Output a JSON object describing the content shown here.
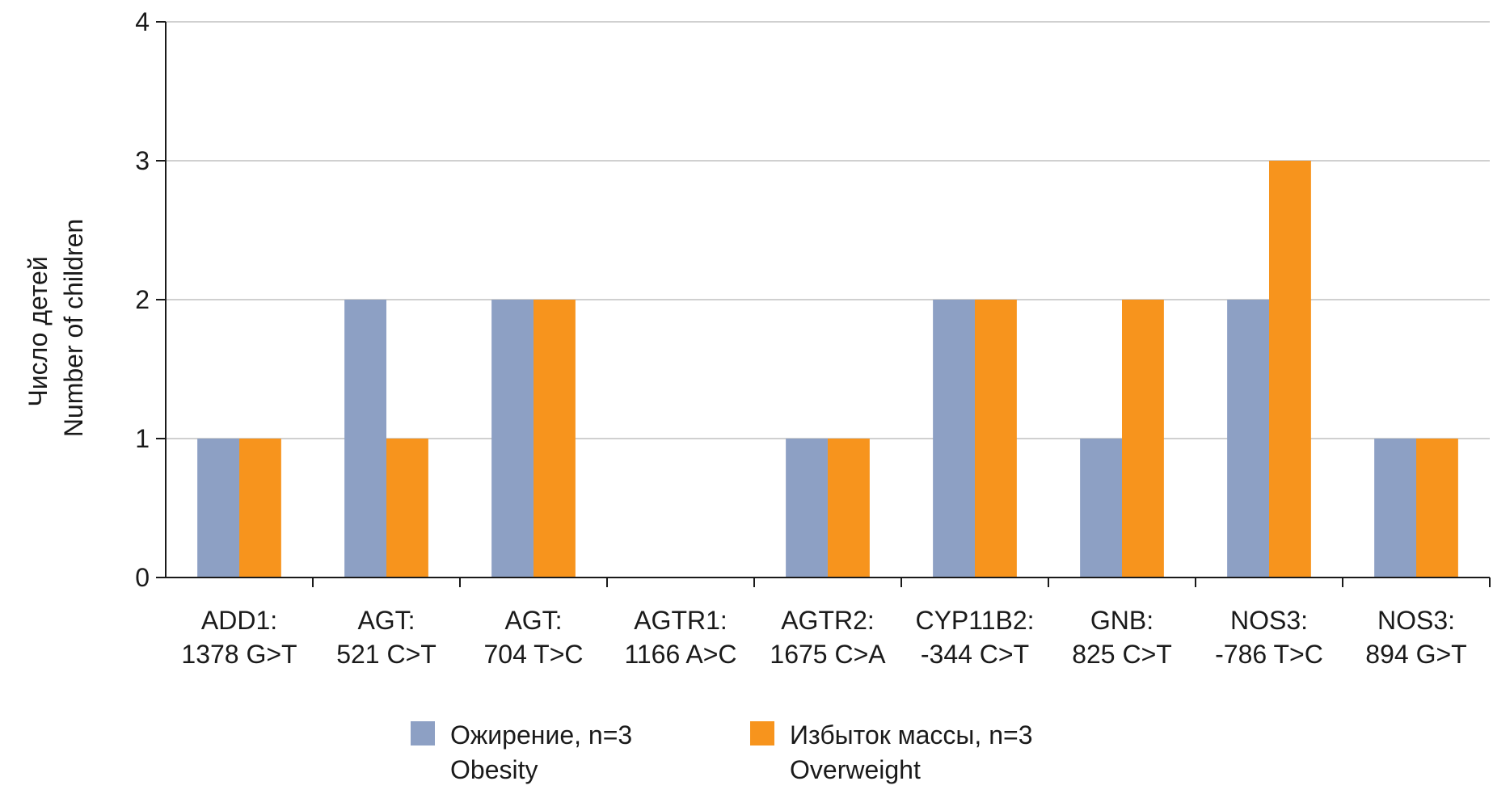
{
  "chart_data": {
    "type": "bar",
    "title": "",
    "xlabel": "",
    "ylabel": [
      "Число детей",
      "Number of children"
    ],
    "ylim": [
      0,
      4
    ],
    "yticks": [
      0,
      1,
      2,
      3,
      4
    ],
    "grid": true,
    "legend_position": "bottom",
    "categories": [
      [
        "ADD1:",
        "1378 G>T"
      ],
      [
        "AGT:",
        "521 C>T"
      ],
      [
        "AGT:",
        "704 T>C"
      ],
      [
        "AGTR1:",
        "1166 A>C"
      ],
      [
        "AGTR2:",
        "1675 C>A"
      ],
      [
        "CYP11B2:",
        "-344 C>T"
      ],
      [
        "GNB:",
        "825 C>T"
      ],
      [
        "NOS3:",
        "-786 T>C"
      ],
      [
        "NOS3:",
        "894 G>T"
      ]
    ],
    "series": [
      {
        "name": [
          "Ожирение, n=3",
          "Obesity"
        ],
        "color": "#8da0c4",
        "values": [
          1,
          2,
          2,
          0,
          1,
          2,
          1,
          2,
          1
        ]
      },
      {
        "name": [
          "Избыток массы, n=3",
          "Overweight"
        ],
        "color": "#f7941d",
        "values": [
          1,
          1,
          2,
          0,
          1,
          2,
          2,
          3,
          1
        ]
      }
    ]
  }
}
